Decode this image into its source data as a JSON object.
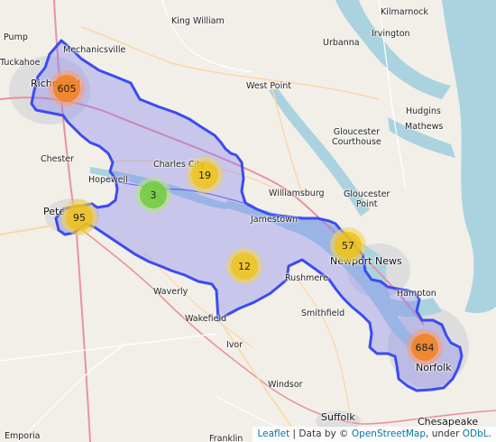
{
  "map": {
    "colors": {
      "water": "#aad3df",
      "land": "#f2efe9",
      "region_fill": "#7b7bf0",
      "region_stroke": "#3c4cf0",
      "road_major": "#e892a2",
      "road_primary": "#fcd6a4",
      "road_minor": "#ffffff",
      "urban": "#dddddd"
    },
    "places": [
      {
        "id": "king-william",
        "label": "King William"
      },
      {
        "id": "kilmarnock",
        "label": "Kilmarnock"
      },
      {
        "id": "pump",
        "label": "Pump"
      },
      {
        "id": "mechanicsville",
        "label": "Mechanicsville"
      },
      {
        "id": "urbanna",
        "label": "Urbanna"
      },
      {
        "id": "irvington",
        "label": "Irvington"
      },
      {
        "id": "tuckahoe",
        "label": "Tuckahoe"
      },
      {
        "id": "richmond",
        "label": "Richmond"
      },
      {
        "id": "west-point",
        "label": "West Point"
      },
      {
        "id": "hudgins",
        "label": "Hudgins"
      },
      {
        "id": "mathews",
        "label": "Mathews"
      },
      {
        "id": "gloucester-courthouse",
        "label": "Gloucester\nCourthouse"
      },
      {
        "id": "chester",
        "label": "Chester"
      },
      {
        "id": "charles-city",
        "label": "Charles City"
      },
      {
        "id": "hopewell",
        "label": "Hopewell"
      },
      {
        "id": "williamsburg",
        "label": "Williamsburg"
      },
      {
        "id": "gloucester-point",
        "label": "Gloucester\nPoint"
      },
      {
        "id": "petersburg",
        "label": "Pete"
      },
      {
        "id": "jamestown",
        "label": "Jamestown"
      },
      {
        "id": "newport-news",
        "label": "Newport News"
      },
      {
        "id": "rushmere",
        "label": "Rushmere"
      },
      {
        "id": "waverly",
        "label": "Waverly"
      },
      {
        "id": "hampton",
        "label": "Hampton"
      },
      {
        "id": "smithfield",
        "label": "Smithfield"
      },
      {
        "id": "wakefield",
        "label": "Wakefield"
      },
      {
        "id": "ivor",
        "label": "Ivor"
      },
      {
        "id": "norfolk",
        "label": "Norfolk"
      },
      {
        "id": "windsor",
        "label": "Windsor"
      },
      {
        "id": "suffolk",
        "label": "Suffolk"
      },
      {
        "id": "chesapeake",
        "label": "Chesapeake"
      },
      {
        "id": "emporia",
        "label": "Emporia"
      },
      {
        "id": "franklin",
        "label": "Franklin"
      }
    ],
    "clusters": [
      {
        "id": "richmond",
        "count": "605",
        "size": "large"
      },
      {
        "id": "charles-city-west",
        "count": "3",
        "size": "small"
      },
      {
        "id": "charles-city",
        "count": "19",
        "size": "medium"
      },
      {
        "id": "petersburg",
        "count": "95",
        "size": "medium"
      },
      {
        "id": "surry",
        "count": "12",
        "size": "medium"
      },
      {
        "id": "newport-news",
        "count": "57",
        "size": "medium"
      },
      {
        "id": "norfolk",
        "count": "684",
        "size": "large"
      }
    ]
  },
  "attribution": {
    "leaflet": "Leaflet",
    "sep1": " | Data by © ",
    "osm": "OpenStreetMap",
    "sep2": ", under ",
    "odbl": "ODbL",
    "end": "."
  }
}
